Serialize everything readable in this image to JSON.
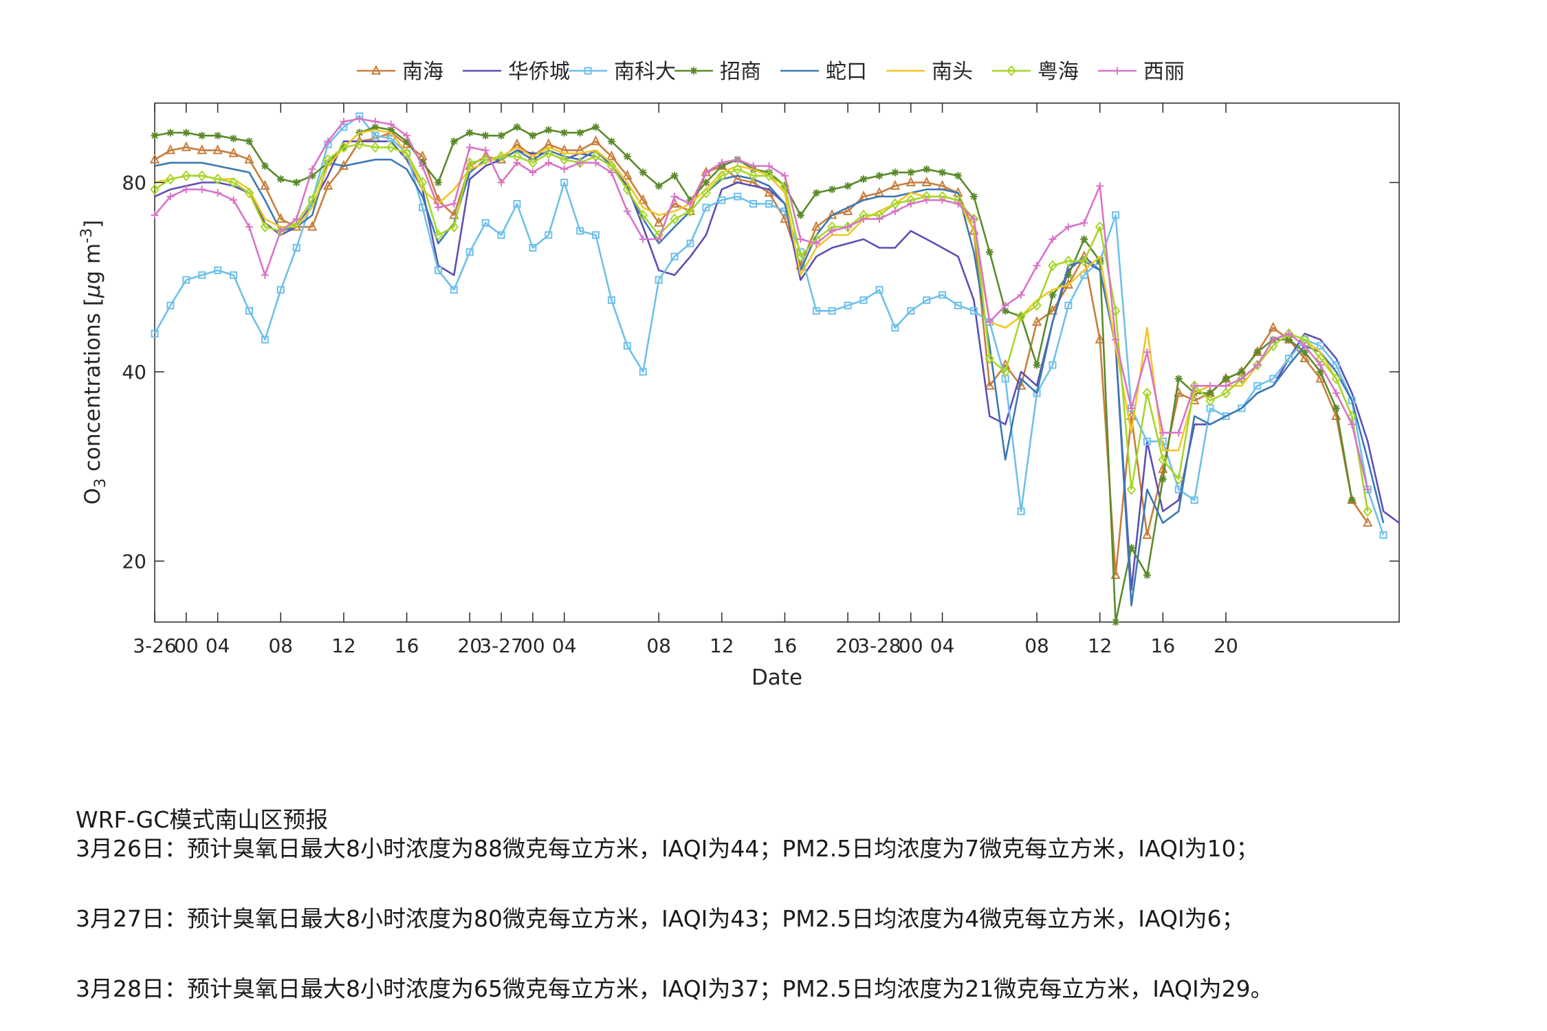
{
  "chart_data": {
    "type": "line",
    "xlabel": "Date",
    "ylabel": "O3 concentrations [μg m-3]",
    "ylabel_parts": {
      "base": "O",
      "sub": "3",
      "mid": " concentrations [",
      "mu": "μ",
      "g": "g m",
      "sup": "-3",
      "end": "]"
    },
    "yscale": "log",
    "ylim": [
      16,
      107
    ],
    "yticks": [
      20,
      40,
      80
    ],
    "xlim": [
      0,
      79
    ],
    "x_tick_positions": [
      0,
      2,
      4,
      8,
      12,
      16,
      20,
      22,
      24,
      26,
      32,
      36,
      40,
      44,
      46,
      48,
      50,
      56,
      60,
      64,
      68
    ],
    "x_tick_labels": [
      "3-26",
      "00",
      "04",
      "08",
      "12",
      "16",
      "20",
      "3-27",
      "00",
      "04",
      "08",
      "12",
      "16",
      "20",
      "3-28",
      "00",
      "04",
      "08",
      "12",
      "16",
      "20"
    ],
    "grid": false,
    "legend_position": "top",
    "series": [
      {
        "name": "南海",
        "color": "#c87d3c",
        "marker": "triangle",
        "values": [
          87,
          90,
          91,
          90,
          90,
          89,
          87,
          79,
          70,
          68,
          68,
          79,
          85,
          93,
          94,
          96,
          92,
          88,
          75,
          71,
          85,
          88,
          87,
          92,
          88,
          92,
          90,
          90,
          93,
          88,
          82,
          75,
          69,
          74,
          72,
          83,
          85,
          81,
          80,
          77,
          70,
          59,
          68,
          71,
          72,
          76,
          77,
          79,
          80,
          80,
          79,
          77,
          67,
          38,
          41,
          38,
          48,
          50,
          55,
          61,
          45,
          19,
          34,
          22,
          28,
          37,
          36,
          37,
          39,
          40,
          43,
          47,
          45,
          42,
          39,
          34,
          25,
          23
        ]
      },
      {
        "name": "华侨城",
        "color": "#5a4fb4",
        "marker": "none",
        "values": [
          76,
          78,
          79,
          80,
          80,
          79,
          77,
          69,
          66,
          68,
          74,
          82,
          93,
          93,
          93,
          93,
          87,
          78,
          59,
          57,
          81,
          85,
          87,
          90,
          89,
          89,
          87,
          89,
          88,
          85,
          79,
          68,
          58,
          57,
          61,
          66,
          78,
          80,
          79,
          78,
          74,
          56,
          61,
          63,
          64,
          65,
          63,
          63,
          67,
          65,
          63,
          61,
          52,
          34,
          33,
          40,
          38,
          48,
          58,
          61,
          58,
          44,
          18,
          31,
          24,
          25,
          33,
          33,
          34,
          35,
          37,
          38,
          42,
          46,
          45,
          42,
          37,
          31,
          24,
          23
        ]
      },
      {
        "name": "南科大",
        "color": "#6ec0ea",
        "marker": "square",
        "values": [
          46,
          51,
          56,
          57,
          58,
          57,
          50,
          45,
          54,
          63,
          75,
          92,
          98,
          102,
          95,
          94,
          89,
          73,
          58,
          54,
          62,
          69,
          66,
          74,
          63,
          66,
          80,
          67,
          66,
          52,
          44,
          40,
          56,
          61,
          64,
          73,
          75,
          76,
          74,
          74,
          72,
          62,
          50,
          50,
          51,
          52,
          54,
          47,
          50,
          52,
          53,
          51,
          50,
          48,
          39,
          24,
          37,
          41,
          51,
          57,
          60,
          71,
          35,
          31,
          31,
          26,
          25,
          35,
          34,
          35,
          38,
          39,
          42,
          45,
          44,
          41,
          36,
          26,
          22
        ]
      },
      {
        "name": "招商",
        "color": "#5a8a2a",
        "marker": "star",
        "values": [
          95,
          96,
          96,
          95,
          95,
          94,
          93,
          85,
          81,
          80,
          82,
          86,
          91,
          96,
          98,
          97,
          93,
          86,
          80,
          93,
          96,
          95,
          95,
          98,
          95,
          97,
          96,
          96,
          98,
          93,
          88,
          83,
          79,
          82,
          75,
          80,
          85,
          87,
          84,
          83,
          79,
          71,
          77,
          78,
          79,
          81,
          82,
          83,
          83,
          84,
          83,
          82,
          76,
          62,
          50,
          49,
          41,
          53,
          57,
          65,
          60,
          16,
          21,
          19,
          27,
          39,
          37,
          37,
          39,
          40,
          43,
          45,
          45,
          43,
          40,
          35,
          25
        ]
      },
      {
        "name": "蛇口",
        "color": "#3c78b4",
        "marker": "none",
        "values": [
          85,
          86,
          86,
          86,
          85,
          84,
          83,
          75,
          67,
          68,
          71,
          86,
          85,
          86,
          87,
          87,
          84,
          76,
          64,
          69,
          83,
          87,
          87,
          90,
          87,
          90,
          88,
          87,
          90,
          85,
          78,
          70,
          64,
          68,
          72,
          77,
          81,
          82,
          81,
          79,
          74,
          58,
          66,
          71,
          73,
          75,
          76,
          76,
          77,
          78,
          78,
          77,
          62,
          44,
          29,
          39,
          37,
          48,
          59,
          60,
          58,
          44,
          17,
          26,
          23,
          24,
          34,
          33,
          34,
          35,
          37,
          38,
          41,
          44,
          43,
          40,
          36,
          29,
          23
        ]
      },
      {
        "name": "南头",
        "color": "#f2c624",
        "marker": "none",
        "values": [
          80,
          81,
          82,
          82,
          81,
          81,
          78,
          70,
          68,
          68,
          73,
          85,
          91,
          96,
          97,
          96,
          89,
          78,
          74,
          78,
          84,
          86,
          88,
          91,
          88,
          91,
          89,
          89,
          90,
          86,
          80,
          73,
          71,
          72,
          74,
          78,
          83,
          85,
          84,
          82,
          77,
          57,
          63,
          66,
          66,
          70,
          72,
          74,
          77,
          76,
          76,
          75,
          67,
          48,
          47,
          49,
          52,
          54,
          55,
          58,
          61,
          44,
          32,
          47,
          30,
          30,
          37,
          38,
          38,
          38,
          41,
          44,
          46,
          45,
          43,
          39,
          34,
          24
        ]
      },
      {
        "name": "粤海",
        "color": "#a6d62a",
        "marker": "diamond",
        "values": [
          78,
          81,
          82,
          82,
          81,
          80,
          77,
          68,
          67,
          69,
          75,
          87,
          91,
          92,
          91,
          91,
          89,
          80,
          66,
          68,
          86,
          87,
          88,
          88,
          86,
          89,
          87,
          86,
          88,
          85,
          78,
          71,
          66,
          70,
          72,
          77,
          82,
          84,
          82,
          82,
          79,
          61,
          65,
          68,
          68,
          71,
          71,
          74,
          75,
          76,
          76,
          75,
          70,
          42,
          40,
          49,
          51,
          59,
          60,
          60,
          68,
          50,
          26,
          37,
          29,
          27,
          38,
          36,
          37,
          39,
          41,
          44,
          46,
          45,
          42,
          39,
          34,
          24
        ]
      },
      {
        "name": "西丽",
        "color": "#d874c8",
        "marker": "plus",
        "values": [
          71,
          76,
          78,
          78,
          77,
          75,
          68,
          57,
          67,
          70,
          84,
          93,
          100,
          101,
          100,
          99,
          95,
          85,
          73,
          74,
          91,
          90,
          80,
          86,
          83,
          86,
          84,
          86,
          86,
          83,
          72,
          65,
          65,
          76,
          74,
          83,
          86,
          87,
          85,
          85,
          82,
          65,
          64,
          67,
          68,
          70,
          70,
          72,
          74,
          75,
          75,
          74,
          70,
          48,
          51,
          53,
          59,
          65,
          68,
          69,
          79,
          45,
          35,
          43,
          32,
          32,
          38,
          38,
          38,
          39,
          41,
          45,
          46,
          44,
          41,
          37,
          33,
          26
        ]
      }
    ]
  },
  "forecast": {
    "title": "WRF-GC模式南山区预报",
    "lines": [
      "3月26日：预计臭氧日最大8小时浓度为88微克每立方米，IAQI为44；PM2.5日均浓度为7微克每立方米，IAQI为10；",
      "3月27日：预计臭氧日最大8小时浓度为80微克每立方米，IAQI为43；PM2.5日均浓度为4微克每立方米，IAQI为6；",
      "3月28日：预计臭氧日最大8小时浓度为65微克每立方米，IAQI为37；PM2.5日均浓度为21微克每立方米，IAQI为29。"
    ]
  }
}
